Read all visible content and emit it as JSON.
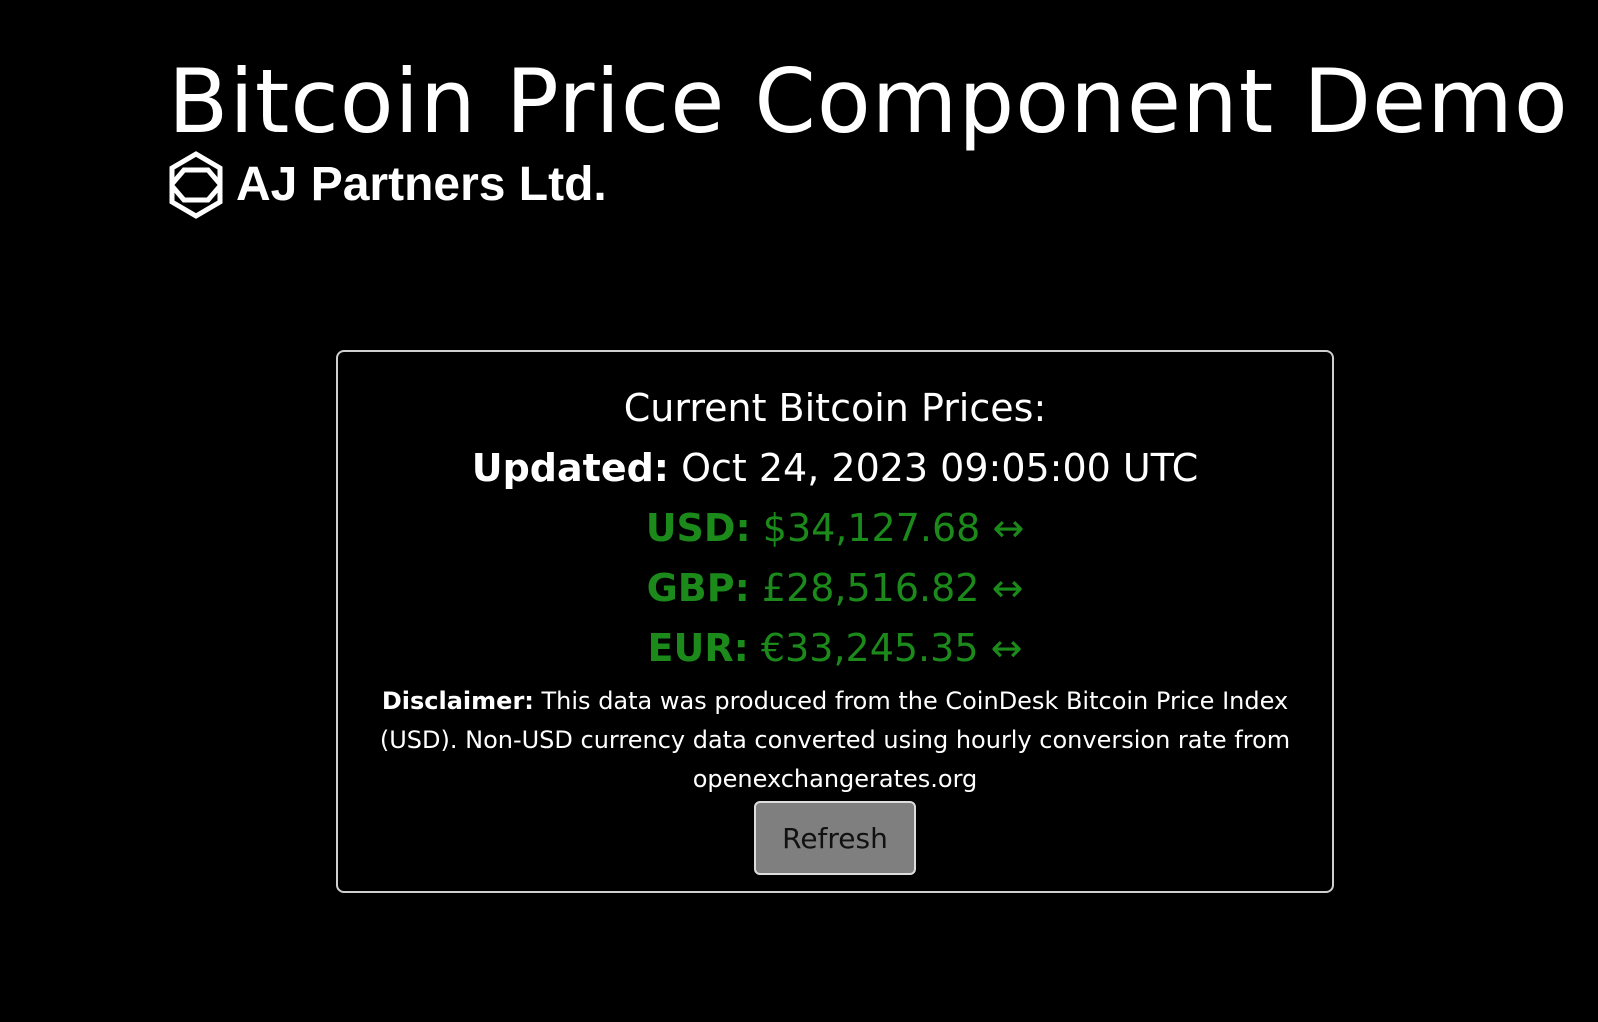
{
  "page": {
    "title": "Bitcoin Price Component Demo"
  },
  "brand": {
    "logo_icon": "hexagon-logo-icon",
    "name": "AJ Partners Ltd."
  },
  "price_card": {
    "heading": "Current Bitcoin Prices:",
    "updated_label": "Updated:",
    "updated_value": "Oct 24, 2023 09:05:00 UTC",
    "price_color": "#1b8a1b",
    "prices": [
      {
        "label": "USD:",
        "value": "$34,127.68",
        "trend": "↔"
      },
      {
        "label": "GBP:",
        "value": "£28,516.82",
        "trend": "↔"
      },
      {
        "label": "EUR:",
        "value": "€33,245.35",
        "trend": "↔"
      }
    ],
    "disclaimer_label": "Disclaimer:",
    "disclaimer_text": "This data was produced from the CoinDesk Bitcoin Price Index (USD). Non-USD currency data converted using hourly conversion rate from openexchangerates.org",
    "refresh_label": "Refresh"
  }
}
